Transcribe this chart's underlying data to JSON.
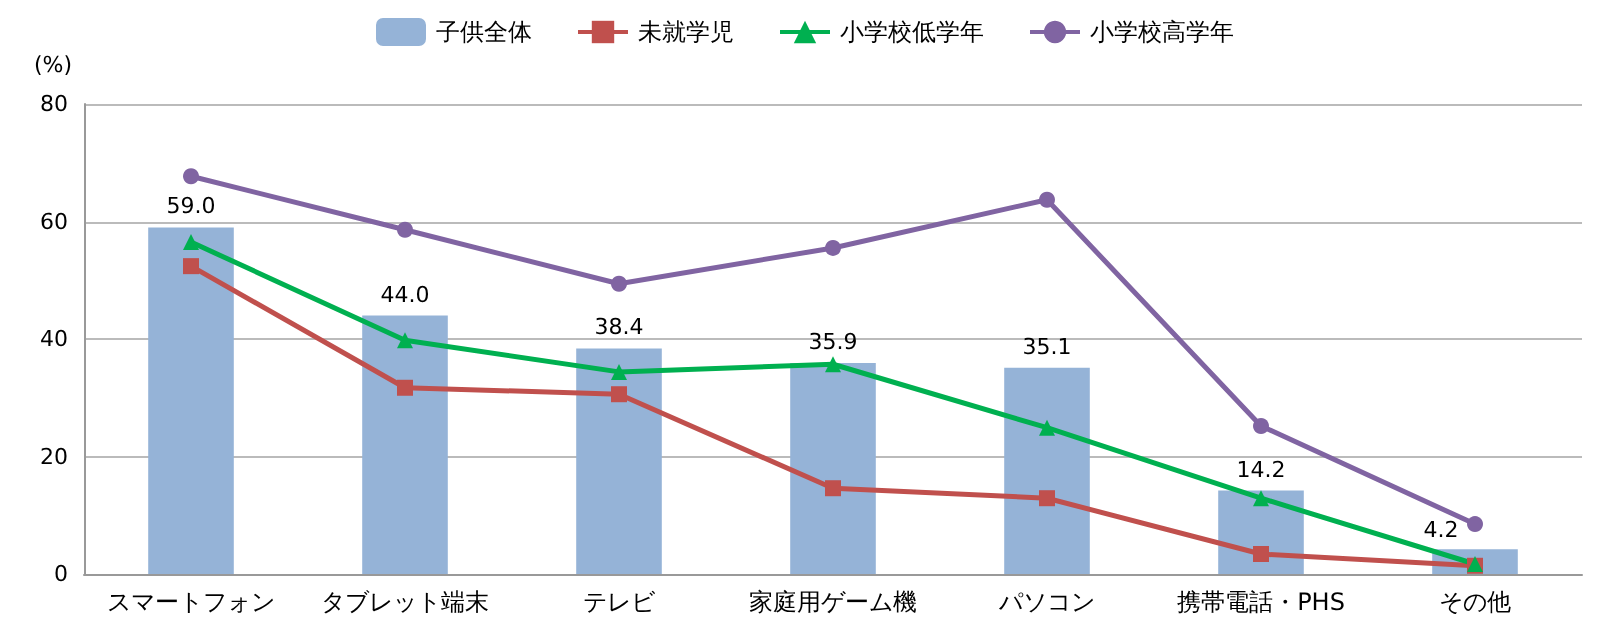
{
  "chart_data": {
    "type": "bar",
    "ylabel": "(%)",
    "categories": [
      "スマートフォン",
      "タブレット端末",
      "テレビ",
      "家庭用ゲーム機",
      "パソコン",
      "携帯電話・PHS",
      "その他"
    ],
    "series": [
      {
        "name": "子供全体",
        "color": "#95b3d7",
        "values": [
          59.0,
          44.0,
          38.4,
          35.9,
          35.1,
          14.2,
          4.2
        ],
        "value_labels": [
          "59.0",
          "44.0",
          "38.4",
          "35.9",
          "35.1",
          "14.2",
          "4.2"
        ]
      },
      {
        "name": "未就学児",
        "type": "line",
        "color": "#c0504d",
        "marker": "square",
        "values": [
          52.4,
          31.7,
          30.6,
          14.6,
          12.9,
          3.4,
          1.4
        ]
      },
      {
        "name": "小学校低学年",
        "type": "line",
        "color": "#00b050",
        "marker": "triangle",
        "values": [
          56.5,
          39.8,
          34.4,
          35.7,
          24.9,
          12.9,
          1.7
        ]
      },
      {
        "name": "小学校高学年",
        "type": "line",
        "color": "#8064a2",
        "marker": "circle",
        "values": [
          67.7,
          58.6,
          49.4,
          55.5,
          63.7,
          25.2,
          8.5
        ]
      }
    ],
    "ylim": [
      0,
      80
    ],
    "yticks": [
      0,
      20,
      40,
      60,
      80
    ],
    "grid": "y",
    "legend": "top"
  }
}
